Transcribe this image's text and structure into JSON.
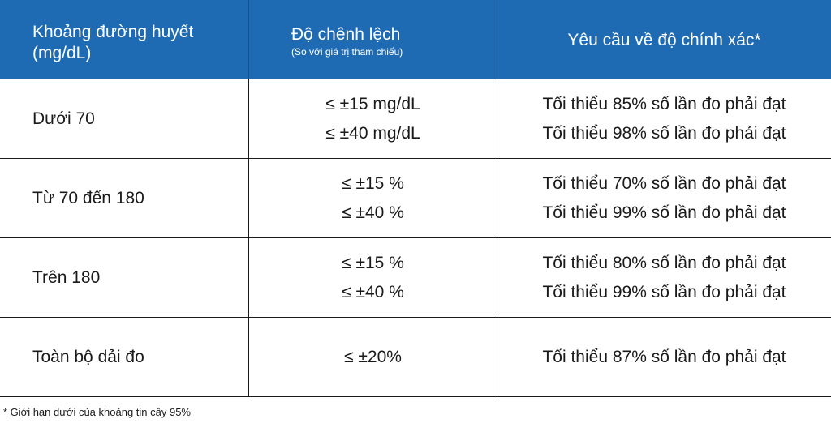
{
  "table": {
    "header": {
      "col1_line1": "Khoảng đường huyết",
      "col1_line2": "(mg/dL)",
      "col2_main": "Độ chênh lệch",
      "col2_sub": "(So với giá trị tham chiếu)",
      "col3": "Yêu cầu về độ chính xác*"
    },
    "rows": [
      {
        "range": "Dưới 70",
        "deviation": [
          "≤ ±15 mg/dL",
          "≤ ±40 mg/dL"
        ],
        "requirement": [
          "Tối thiểu 85% số lần đo phải đạt",
          "Tối thiểu 98% số lần đo phải đạt"
        ]
      },
      {
        "range": "Từ 70 đến 180",
        "deviation": [
          "≤ ±15 %",
          "≤ ±40 %"
        ],
        "requirement": [
          "Tối thiểu 70% số lần đo phải đạt",
          "Tối thiểu 99% số lần đo phải đạt"
        ]
      },
      {
        "range": "Trên 180",
        "deviation": [
          "≤ ±15 %",
          "≤ ±40 %"
        ],
        "requirement": [
          "Tối thiểu 80% số lần đo phải đạt",
          "Tối thiểu 99% số lần đo phải đạt"
        ]
      },
      {
        "range": "Toàn bộ dải đo",
        "deviation": [
          "≤ ±20%"
        ],
        "requirement": [
          "Tối thiểu 87% số lần đo phải đạt"
        ]
      }
    ]
  },
  "footnote": "* Giới hạn dưới của khoảng tin cậy 95%",
  "colors": {
    "header_background": "#1f6bb3",
    "header_text": "#ffffff",
    "body_text": "#1a1a1a",
    "grid_lines": "#1a1a1a"
  }
}
